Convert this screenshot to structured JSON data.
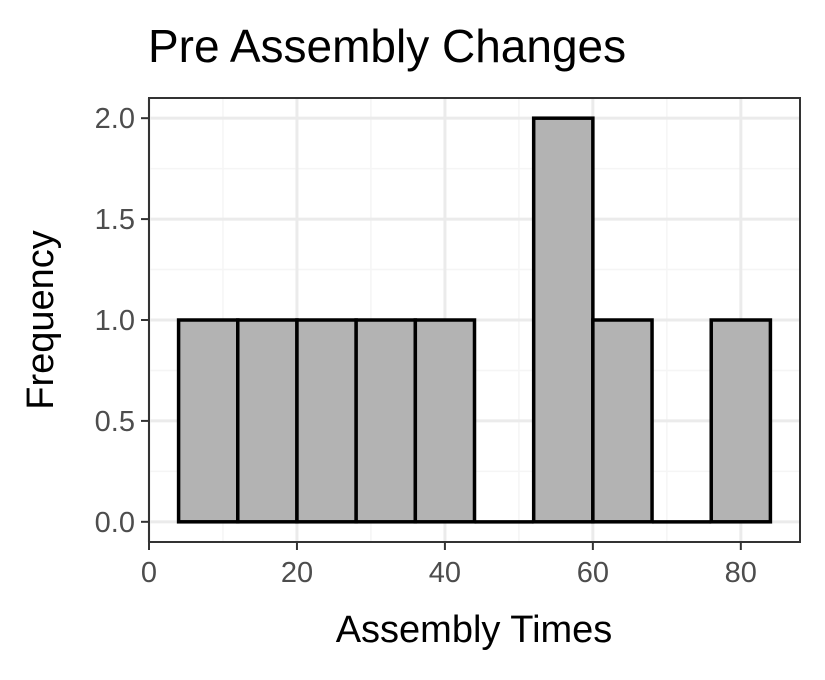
{
  "chart_data": {
    "type": "bar",
    "subtype": "histogram",
    "title": "Pre Assembly Changes",
    "xlabel": "Assembly Times",
    "ylabel": "Frequency",
    "bins": [
      {
        "start": 4,
        "end": 12,
        "count": 1
      },
      {
        "start": 12,
        "end": 20,
        "count": 1
      },
      {
        "start": 20,
        "end": 28,
        "count": 1
      },
      {
        "start": 28,
        "end": 36,
        "count": 1
      },
      {
        "start": 36,
        "end": 44,
        "count": 1
      },
      {
        "start": 44,
        "end": 52,
        "count": 0
      },
      {
        "start": 52,
        "end": 60,
        "count": 2
      },
      {
        "start": 60,
        "end": 68,
        "count": 1
      },
      {
        "start": 68,
        "end": 76,
        "count": 0
      },
      {
        "start": 76,
        "end": 84,
        "count": 1
      }
    ],
    "xlim": [
      0,
      88
    ],
    "ylim": [
      -0.1,
      2.1
    ],
    "x_ticks": [
      0,
      20,
      40,
      60,
      80
    ],
    "x_tick_labels": [
      "0",
      "20",
      "40",
      "60",
      "80"
    ],
    "y_ticks": [
      0,
      0.5,
      1,
      1.5,
      2
    ],
    "y_tick_labels": [
      "0.0",
      "0.5",
      "1.0",
      "1.5",
      "2.0"
    ],
    "grid": true,
    "colors": {
      "bar_fill": "#b3b3b3",
      "bar_stroke": "#000000",
      "panel_background": "#ffffff",
      "panel_border": "#333333",
      "grid_major": "#ebebeb",
      "grid_minor": "#f5f5f5",
      "tick_text": "#4d4d4d"
    }
  }
}
